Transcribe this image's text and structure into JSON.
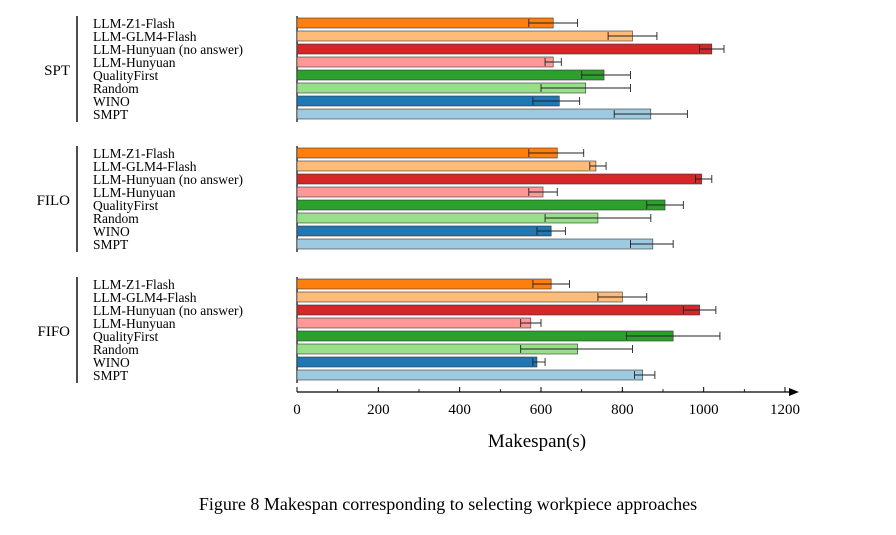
{
  "chart_data": {
    "type": "bar",
    "orientation": "horizontal",
    "xlabel": "Makespan(s)",
    "xlim": [
      0,
      1200
    ],
    "xticks": [
      "0",
      "200",
      "400",
      "600",
      "800",
      "1000",
      "1200"
    ],
    "caption": "Figure 8 Makespan corresponding to selecting workpiece approaches",
    "methods": [
      {
        "name": "LLM-Z1-Flash",
        "color": "#ff7f0e"
      },
      {
        "name": "LLM-GLM4-Flash",
        "color": "#ffbb78"
      },
      {
        "name": "LLM-Hunyuan (no answer)",
        "color": "#d62728"
      },
      {
        "name": "LLM-Hunyuan",
        "color": "#ff9896"
      },
      {
        "name": "QualityFirst",
        "color": "#2ca02c"
      },
      {
        "name": "Random",
        "color": "#98df8a"
      },
      {
        "name": "WINO",
        "color": "#1f77b4"
      },
      {
        "name": "SMPT",
        "color": "#9ecae1"
      }
    ],
    "groups": [
      {
        "name": "SPT",
        "values": [
          630,
          825,
          1020,
          630,
          755,
          710,
          645,
          870
        ],
        "errors": [
          [
            570,
            690
          ],
          [
            765,
            885
          ],
          [
            990,
            1050
          ],
          [
            610,
            650
          ],
          [
            700,
            820
          ],
          [
            600,
            820
          ],
          [
            580,
            695
          ],
          [
            780,
            960
          ]
        ]
      },
      {
        "name": "FILO",
        "values": [
          640,
          735,
          995,
          605,
          905,
          740,
          625,
          875
        ],
        "errors": [
          [
            570,
            705
          ],
          [
            720,
            760
          ],
          [
            980,
            1020
          ],
          [
            570,
            640
          ],
          [
            860,
            950
          ],
          [
            610,
            870
          ],
          [
            590,
            660
          ],
          [
            820,
            925
          ]
        ]
      },
      {
        "name": "FIFO",
        "values": [
          625,
          800,
          990,
          575,
          925,
          690,
          590,
          850
        ],
        "errors": [
          [
            580,
            670
          ],
          [
            740,
            860
          ],
          [
            950,
            1030
          ],
          [
            550,
            600
          ],
          [
            810,
            1040
          ],
          [
            550,
            825
          ],
          [
            580,
            610
          ],
          [
            830,
            880
          ]
        ]
      }
    ]
  }
}
